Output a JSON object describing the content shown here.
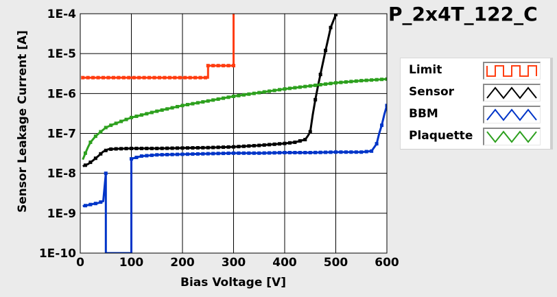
{
  "chart_data": {
    "type": "line",
    "title": "P_2x4T_122_C",
    "xlabel": "Bias Voltage [V]",
    "ylabel": "Sensor Leakage Current [A]",
    "xlim": [
      0,
      600
    ],
    "ylim": [
      1e-10,
      0.0001
    ],
    "yscale": "log",
    "grid": true,
    "legend_position": "right",
    "x_ticks": [
      0,
      100,
      200,
      300,
      400,
      500,
      600
    ],
    "x_tick_labels": [
      "0",
      "100",
      "200",
      "300",
      "400",
      "500",
      "600"
    ],
    "y_ticks": [
      1e-10,
      1e-09,
      1e-08,
      1e-07,
      1e-06,
      1e-05,
      0.0001
    ],
    "y_tick_labels": [
      "1E-10",
      "1E-9",
      "1E-8",
      "1E-7",
      "1E-6",
      "1E-5",
      "1E-4"
    ],
    "series": [
      {
        "name": "Limit",
        "color": "#ff3d10",
        "marker": "square",
        "step": true,
        "x": [
          5,
          250,
          250,
          300,
          300
        ],
        "y": [
          2.5e-06,
          2.5e-06,
          5e-06,
          5e-06,
          0.0001
        ]
      },
      {
        "name": "Sensor",
        "color": "#000000",
        "marker": "square",
        "x": [
          5,
          15,
          25,
          35,
          45,
          55,
          70,
          100,
          150,
          200,
          250,
          300,
          350,
          400,
          420,
          440,
          445,
          450,
          455,
          460,
          465,
          470,
          480,
          490,
          500
        ],
        "y": [
          1.5e-08,
          1.7e-08,
          2.1e-08,
          2.7e-08,
          3.5e-08,
          4e-08,
          4.1e-08,
          4.2e-08,
          4.2e-08,
          4.3e-08,
          4.4e-08,
          4.6e-08,
          5e-08,
          5.6e-08,
          6e-08,
          7e-08,
          8.5e-08,
          1.1e-07,
          3e-07,
          7e-07,
          1.5e-06,
          3e-06,
          1.2e-05,
          4.5e-05,
          9.5e-05
        ]
      },
      {
        "name": "BBM",
        "color": "#0035c8",
        "marker": "square",
        "x": [
          5,
          15,
          25,
          35,
          40,
          45,
          50,
          50,
          100,
          100,
          110,
          120,
          150,
          200,
          250,
          300,
          350,
          400,
          450,
          500,
          550,
          570,
          580,
          585,
          590,
          595,
          600
        ],
        "y": [
          1.5e-09,
          1.6e-09,
          1.7e-09,
          1.8e-09,
          1.9e-09,
          2e-09,
          1e-08,
          1e-10,
          1e-10,
          2.3e-08,
          2.5e-08,
          2.7e-08,
          2.9e-08,
          3e-08,
          3.1e-08,
          3.2e-08,
          3.2e-08,
          3.3e-08,
          3.3e-08,
          3.4e-08,
          3.4e-08,
          3.6e-08,
          5.5e-08,
          1e-07,
          1.6e-07,
          3e-07,
          5e-07
        ]
      },
      {
        "name": "Plaquette",
        "color": "#2da01e",
        "marker": "square",
        "x": [
          5,
          10,
          15,
          20,
          30,
          40,
          50,
          60,
          80,
          100,
          150,
          200,
          250,
          300,
          350,
          400,
          450,
          500,
          550,
          600
        ],
        "y": [
          2.2e-08,
          3.2e-08,
          4.5e-08,
          6e-08,
          8.5e-08,
          1.1e-07,
          1.4e-07,
          1.6e-07,
          2e-07,
          2.5e-07,
          3.6e-07,
          5e-07,
          6.5e-07,
          8.5e-07,
          1.05e-06,
          1.3e-06,
          1.55e-06,
          1.85e-06,
          2.1e-06,
          2.3e-06
        ]
      }
    ]
  }
}
